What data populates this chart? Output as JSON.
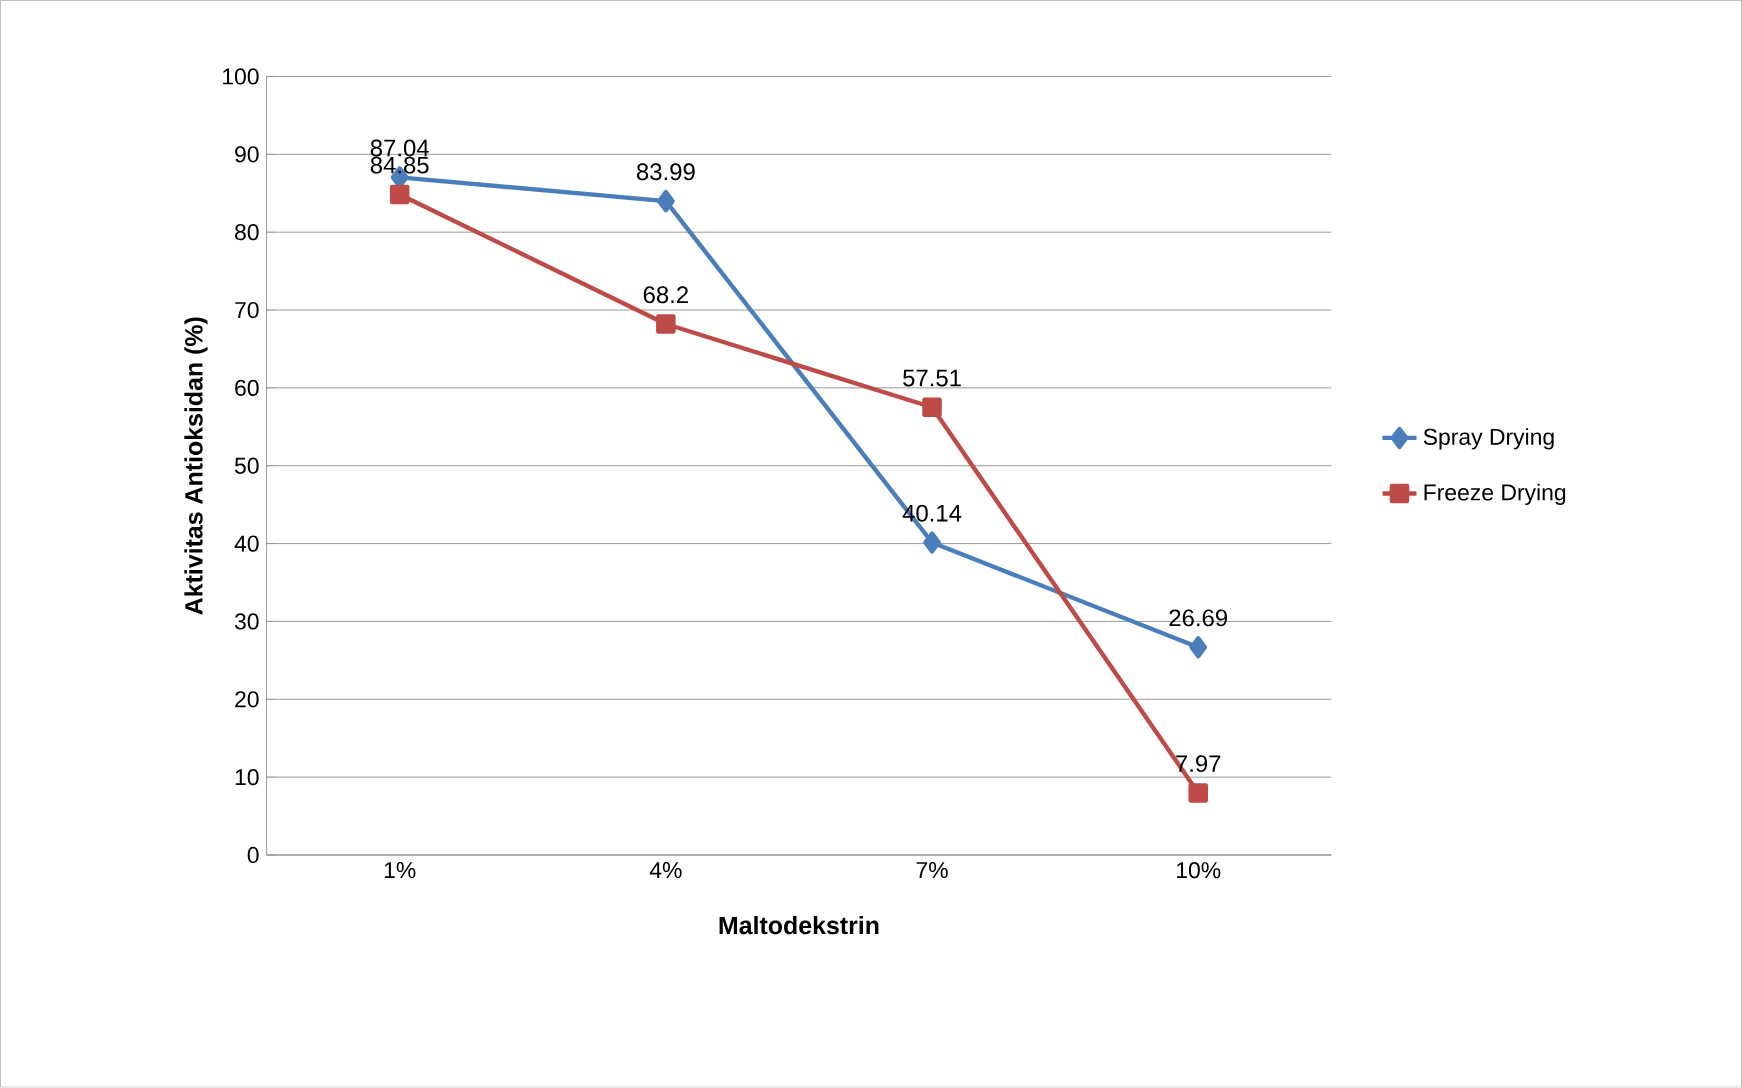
{
  "chart_data": {
    "type": "line",
    "categories": [
      "1%",
      "4%",
      "7%",
      "10%"
    ],
    "xlabel": "Maltodekstrin",
    "ylabel": "Aktivitas Antioksidan (%)",
    "series": [
      {
        "name": "Spray Drying",
        "color": "#4a7ebb",
        "marker": "diamond",
        "values": [
          87.04,
          83.99,
          40.14,
          26.69
        ]
      },
      {
        "name": "Freeze Drying",
        "color": "#be4b48",
        "marker": "square",
        "values": [
          84.85,
          68.2,
          57.51,
          7.97
        ]
      }
    ],
    "ylim": [
      0,
      100
    ],
    "yticks": [
      0,
      10,
      20,
      30,
      40,
      50,
      60,
      70,
      80,
      90,
      100
    ],
    "grid": "y",
    "legend": "right",
    "data_labels": true
  }
}
